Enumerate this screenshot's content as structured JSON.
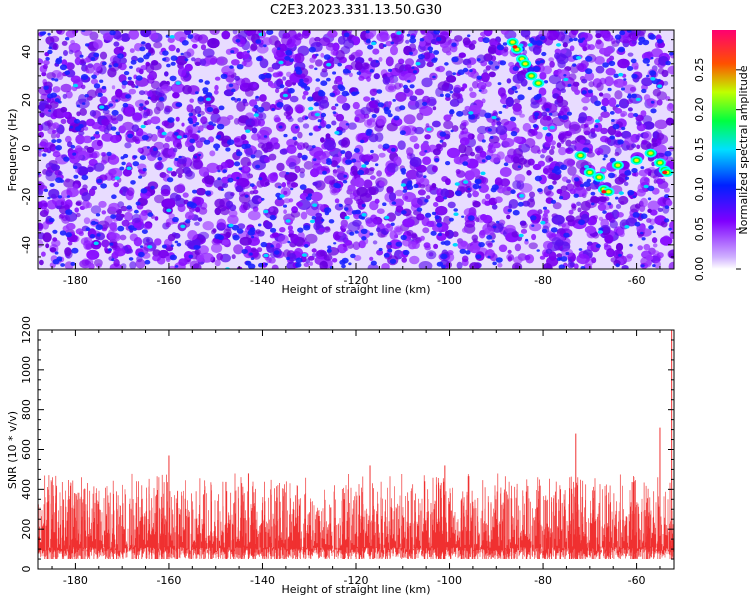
{
  "title": "C2E3.2023.331.13.50.G30",
  "chart_data": [
    {
      "type": "heatmap",
      "xlabel": "Height of straight line (km)",
      "ylabel": "Frequency (Hz)",
      "xlim": [
        -188,
        -52
      ],
      "ylim": [
        -50,
        49
      ],
      "xticks": [
        -180,
        -160,
        -140,
        -120,
        -100,
        -80,
        -60
      ],
      "yticks": [
        -40,
        -20,
        0,
        20,
        40
      ],
      "colorbar": {
        "label": "Normalized spectral amplitude",
        "range": [
          0,
          0.3
        ],
        "ticks": [
          0.0,
          0.05,
          0.1,
          0.15,
          0.2,
          0.25
        ],
        "tick_labels": [
          "0.00",
          "0.05",
          "0.10",
          "0.15",
          "0.20",
          "0.25"
        ],
        "colors": [
          "#ffffff",
          "#7f00ff",
          "#0000ff",
          "#00ffff",
          "#00ff00",
          "#ffff00",
          "#ff0000",
          "#ff0080"
        ]
      },
      "description_of_features": "Dense purple noise blobs; brighter streaks near -86 to -82 km at 25 to 45 Hz, and near -72 to -52 km at -20 to 5 Hz"
    },
    {
      "type": "area",
      "xlabel": "Height of straight line (km)",
      "ylabel": "SNR (10 * v/v)",
      "xlim": [
        -188,
        -52
      ],
      "ylim": [
        0,
        1200
      ],
      "xticks": [
        -180,
        -160,
        -140,
        -120,
        -100,
        -80,
        -60
      ],
      "yticks": [
        0,
        200,
        400,
        600,
        800,
        1000,
        1200
      ],
      "color": "#f03030",
      "typical_range": [
        50,
        330
      ],
      "peaks": [
        {
          "x": -160,
          "y": 570
        },
        {
          "x": -143,
          "y": 480
        },
        {
          "x": -117,
          "y": 520
        },
        {
          "x": -101,
          "y": 520
        },
        {
          "x": -73,
          "y": 680
        },
        {
          "x": -55,
          "y": 710
        },
        {
          "x": -52.5,
          "y": 1200
        }
      ]
    }
  ]
}
